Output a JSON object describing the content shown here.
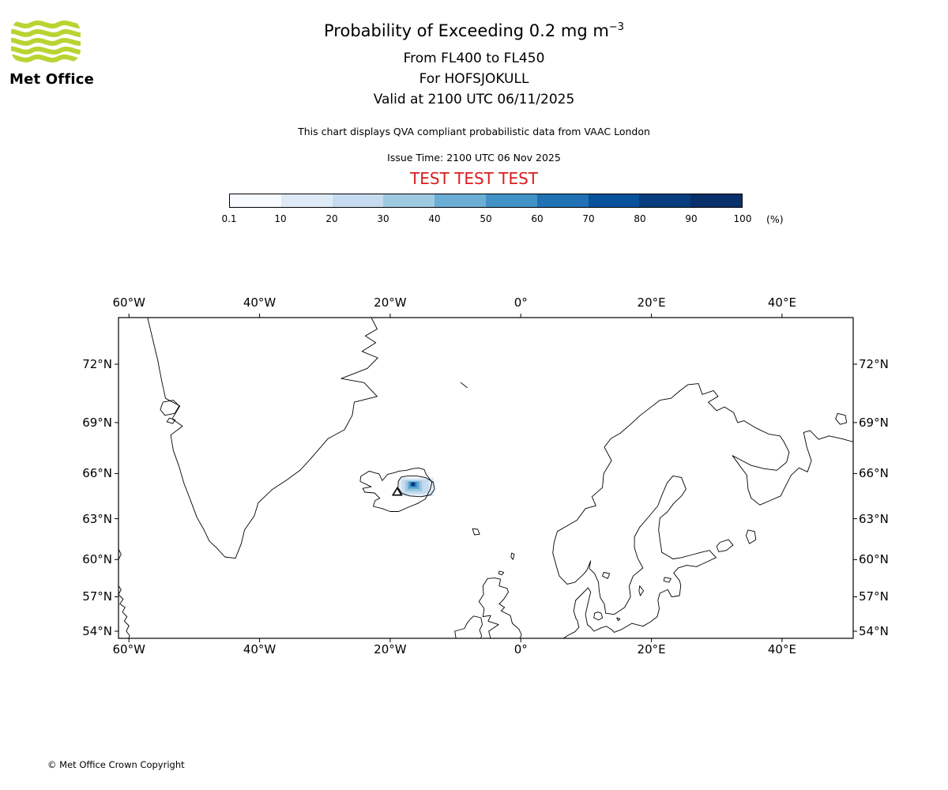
{
  "header": {
    "logo_text": "Met Office",
    "logo_green": "#b8d432",
    "title_main": "Probability of Exceeding 0.2 mg m",
    "title_exp": "−3",
    "subtitle_levels": "From FL400 to FL450",
    "subtitle_volcano": "For HOFSJOKULL",
    "subtitle_valid": "Valid at 2100 UTC 06/11/2025",
    "disclaimer": "This chart displays QVA compliant probabilistic data from VAAC London",
    "issue_time": "Issue Time: 2100 UTC 06 Nov 2025",
    "test_banner": "TEST TEST TEST",
    "test_color": "#d81e1e"
  },
  "colorbar": {
    "tick_labels": [
      "0.1",
      "10",
      "20",
      "30",
      "40",
      "50",
      "60",
      "70",
      "80",
      "90",
      "100"
    ],
    "unit": "(%)",
    "colors": [
      "#f7fbff",
      "#deebf7",
      "#c6dbef",
      "#9ecae1",
      "#6baed6",
      "#4292c6",
      "#2171b5",
      "#08519c",
      "#083d7f",
      "#08306b"
    ]
  },
  "map": {
    "lon_ticks": [
      {
        "label": "60°W",
        "lon": -60
      },
      {
        "label": "40°W",
        "lon": -40
      },
      {
        "label": "20°W",
        "lon": -20
      },
      {
        "label": "0°",
        "lon": 0
      },
      {
        "label": "20°E",
        "lon": 20
      },
      {
        "label": "40°E",
        "lon": 40
      }
    ],
    "lat_ticks": [
      {
        "label": "72°N",
        "lat": 72
      },
      {
        "label": "69°N",
        "lat": 69
      },
      {
        "label": "66°N",
        "lat": 66
      },
      {
        "label": "63°N",
        "lat": 63
      },
      {
        "label": "60°N",
        "lat": 60
      },
      {
        "label": "57°N",
        "lat": 57
      },
      {
        "label": "54°N",
        "lat": 54
      }
    ],
    "volcano": {
      "name": "HOFSJOKULL",
      "lon": -18.92,
      "lat": 64.82
    },
    "ash_plume": {
      "cells": [
        {
          "lon0": -18.7,
          "lon1": -13.3,
          "lat0": 64.55,
          "lat1": 65.75,
          "color": "#deebf7"
        },
        {
          "lon0": -18.2,
          "lon1": -14.1,
          "lat0": 64.7,
          "lat1": 65.62,
          "color": "#c6dbef"
        },
        {
          "lon0": -17.7,
          "lon1": -15.1,
          "lat0": 64.85,
          "lat1": 65.55,
          "color": "#9ecae1"
        },
        {
          "lon0": -17.3,
          "lon1": -15.5,
          "lat0": 65.0,
          "lat1": 65.5,
          "color": "#6baed6"
        },
        {
          "lon0": -17.05,
          "lon1": -15.85,
          "lat0": 65.1,
          "lat1": 65.47,
          "color": "#4292c6"
        },
        {
          "lon0": -16.9,
          "lon1": -16.1,
          "lat0": 65.17,
          "lat1": 65.45,
          "color": "#2171b5"
        },
        {
          "lon0": -16.75,
          "lon1": -16.25,
          "lat0": 65.22,
          "lat1": 65.42,
          "color": "#08306b"
        }
      ],
      "contour_pts": [
        [
          -18.8,
          65.1
        ],
        [
          -18.75,
          65.5
        ],
        [
          -18.3,
          65.78
        ],
        [
          -17.3,
          65.85
        ],
        [
          -16.0,
          65.85
        ],
        [
          -14.6,
          65.75
        ],
        [
          -13.4,
          65.45
        ],
        [
          -13.2,
          65.0
        ],
        [
          -13.8,
          64.62
        ],
        [
          -15.3,
          64.5
        ],
        [
          -17.0,
          64.55
        ],
        [
          -18.2,
          64.72
        ],
        [
          -18.8,
          65.1
        ]
      ]
    }
  },
  "footer": {
    "copyright": "© Met Office Crown Copyright"
  },
  "chart_data": {
    "type": "heatmap",
    "title": "Probability of Exceeding 0.2 mg m−3",
    "subtitle": [
      "From FL400 to FL450",
      "For HOFSJOKULL",
      "Valid at 2100 UTC 06/11/2025"
    ],
    "legend": {
      "unit": "%",
      "ticks": [
        0.1,
        10,
        20,
        30,
        40,
        50,
        60,
        70,
        80,
        90,
        100
      ],
      "position": "top"
    },
    "map_extent": {
      "lon": [
        -61.6,
        50.8
      ],
      "lat": [
        53.3,
        74.1
      ]
    },
    "plume_summary": {
      "location": "over and east of Hofsjokull, Iceland",
      "lon_range": [
        -18.7,
        -13.3
      ],
      "lat_range": [
        64.55,
        65.75
      ],
      "peak_probability_pct_range": [
        90,
        100
      ],
      "peak_center": {
        "lon": -16.5,
        "lat": 65.3
      }
    }
  }
}
